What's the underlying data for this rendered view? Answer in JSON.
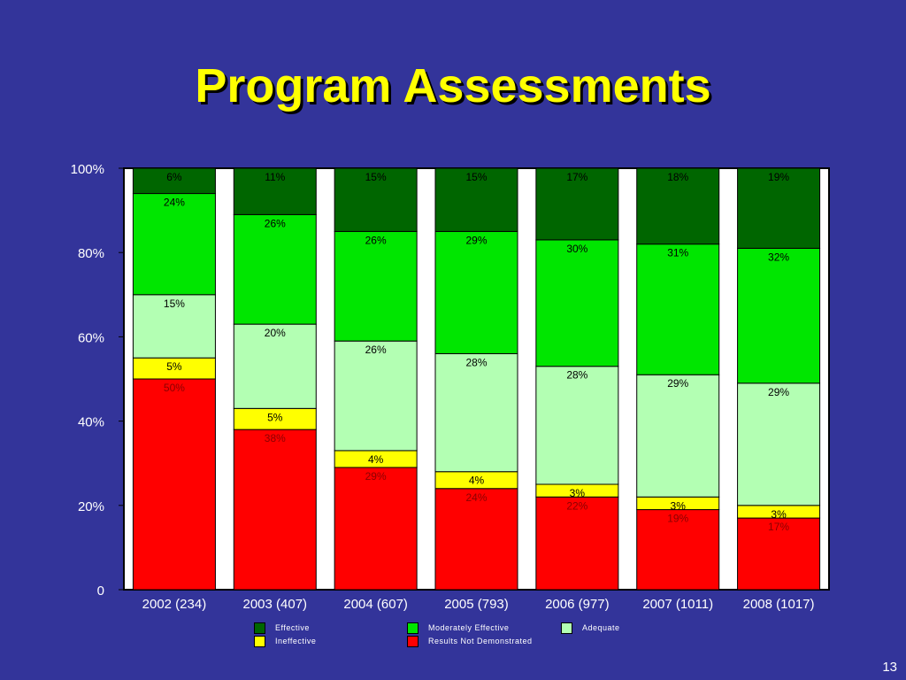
{
  "slide": {
    "title": "Program Assessments",
    "page_number": "13"
  },
  "colors": {
    "background": "#33349a",
    "title": "#ffff00",
    "Effective": "#006600",
    "Moderately Effective": "#00e600",
    "Adequate": "#b3ffb3",
    "Ineffective": "#ffff00",
    "Results Not Demonstrated": "#ff0000",
    "plot_area": "#ffffff"
  },
  "chart_data": {
    "type": "bar",
    "stacked": true,
    "title": "",
    "xlabel": "",
    "ylabel": "",
    "ylim": [
      0,
      100
    ],
    "y_ticks": [
      "0",
      "20%",
      "40%",
      "60%",
      "80%",
      "100%"
    ],
    "y_tick_values": [
      0,
      20,
      40,
      60,
      80,
      100
    ],
    "categories": [
      "2002 (234)",
      "2003 (407)",
      "2004 (607)",
      "2005 (793)",
      "2006 (977)",
      "2007 (1011)",
      "2008 (1017)"
    ],
    "series": [
      {
        "name": "Results Not Demonstrated",
        "values": [
          50,
          38,
          29,
          24,
          22,
          19,
          17
        ]
      },
      {
        "name": "Ineffective",
        "values": [
          5,
          5,
          4,
          4,
          3,
          3,
          3
        ]
      },
      {
        "name": "Adequate",
        "values": [
          15,
          20,
          26,
          28,
          28,
          29,
          29
        ]
      },
      {
        "name": "Moderately Effective",
        "values": [
          24,
          26,
          26,
          29,
          30,
          31,
          32
        ]
      },
      {
        "name": "Effective",
        "values": [
          6,
          11,
          15,
          15,
          17,
          18,
          19
        ]
      }
    ],
    "legend_position": "bottom",
    "grid": false
  },
  "legend": {
    "items": [
      {
        "label": "Effective",
        "color": "#006600"
      },
      {
        "label": "Moderately Effective",
        "color": "#00e600"
      },
      {
        "label": "Adequate",
        "color": "#b3ffb3"
      },
      {
        "label": "Ineffective",
        "color": "#ffff00"
      },
      {
        "label": "Results Not Demonstrated",
        "color": "#ff0000"
      }
    ]
  }
}
